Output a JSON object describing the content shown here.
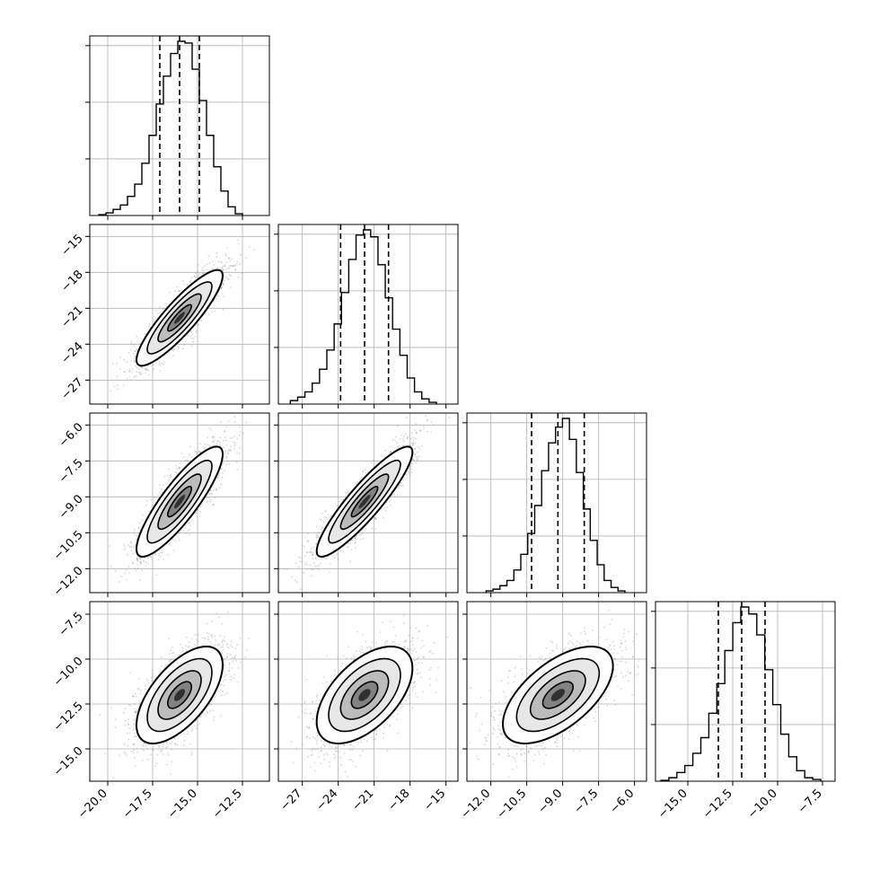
{
  "chart_data": {
    "type": "corner",
    "parameters": 4,
    "grid": true,
    "colors": {
      "ink": "#000000",
      "grid": "#b0b0b0",
      "scatter": "#8c8c8c",
      "background": "#ffffff"
    },
    "histogram_bins": 20,
    "quantile_line_style": "dashed",
    "axes": [
      {
        "range": [
          -21.0,
          -11.0
        ],
        "ticks": [
          -20.0,
          -17.5,
          -15.0,
          -12.5
        ],
        "tick_labels": [
          "−20.0",
          "−17.5",
          "−15.0",
          "−12.5"
        ]
      },
      {
        "range": [
          -29.0,
          -14.0
        ],
        "ticks": [
          -27,
          -24,
          -21,
          -18,
          -15
        ],
        "tick_labels": [
          "−27",
          "−24",
          "−21",
          "−18",
          "−15"
        ]
      },
      {
        "range": [
          -13.0,
          -5.5
        ],
        "ticks": [
          -12.0,
          -10.5,
          -9.0,
          -7.5,
          -6.0
        ],
        "tick_labels": [
          "−12.0",
          "−10.5",
          "−9.0",
          "−7.5",
          "−6.0"
        ]
      },
      {
        "range": [
          -16.8,
          -6.8
        ],
        "ticks": [
          -15.0,
          -12.5,
          -10.0,
          -7.5
        ],
        "tick_labels": [
          "−15.0",
          "−12.5",
          "−10.0",
          "−7.5"
        ]
      }
    ],
    "marginals": [
      {
        "param": 0,
        "quantiles": [
          -17.1,
          -16.0,
          -14.9
        ],
        "bin_range": [
          -20.5,
          -12.5
        ],
        "counts": [
          0.5,
          1.5,
          3.5,
          6,
          11,
          18,
          30,
          46,
          64,
          80,
          93,
          100,
          99,
          84,
          66,
          46,
          28,
          14,
          5,
          1
        ]
      },
      {
        "param": 1,
        "quantiles": [
          -23.8,
          -21.8,
          -19.8
        ],
        "bin_range": [
          -28.0,
          -15.8
        ],
        "counts": [
          2,
          4,
          7,
          12,
          20,
          31,
          46,
          64,
          83,
          97,
          100,
          96,
          80,
          61,
          43,
          28,
          15,
          7,
          3,
          1
        ]
      },
      {
        "param": 2,
        "quantiles": [
          -10.3,
          -9.2,
          -8.1
        ],
        "bin_range": [
          -12.2,
          -6.4
        ],
        "counts": [
          1,
          2,
          4,
          7,
          13,
          22,
          34,
          50,
          70,
          86,
          95,
          100,
          88,
          69,
          48,
          30,
          16,
          7,
          3,
          1
        ]
      },
      {
        "param": 3,
        "quantiles": [
          -13.3,
          -12.0,
          -10.7
        ],
        "bin_range": [
          -16.5,
          -7.6
        ],
        "counts": [
          0.5,
          2,
          5,
          9,
          16,
          25,
          39,
          56,
          75,
          91,
          100,
          96,
          84,
          64,
          44,
          27,
          14,
          6,
          2,
          1
        ]
      }
    ],
    "pairs": [
      {
        "x": 0,
        "y": 1,
        "mean": [
          -16.0,
          -21.8
        ],
        "sd": [
          1.2,
          2.0
        ],
        "corr": 0.88
      },
      {
        "x": 0,
        "y": 2,
        "mean": [
          -16.0,
          -9.2
        ],
        "sd": [
          1.2,
          1.15
        ],
        "corr": 0.86
      },
      {
        "x": 1,
        "y": 2,
        "mean": [
          -21.8,
          -9.2
        ],
        "sd": [
          2.0,
          1.15
        ],
        "corr": 0.9
      },
      {
        "x": 0,
        "y": 3,
        "mean": [
          -16.0,
          -12.0
        ],
        "sd": [
          1.2,
          1.35
        ],
        "corr": 0.62
      },
      {
        "x": 1,
        "y": 3,
        "mean": [
          -21.8,
          -12.0
        ],
        "sd": [
          2.0,
          1.35
        ],
        "corr": 0.55
      },
      {
        "x": 2,
        "y": 3,
        "mean": [
          -9.2,
          -12.0
        ],
        "sd": [
          1.15,
          1.35
        ],
        "corr": 0.6
      }
    ]
  }
}
